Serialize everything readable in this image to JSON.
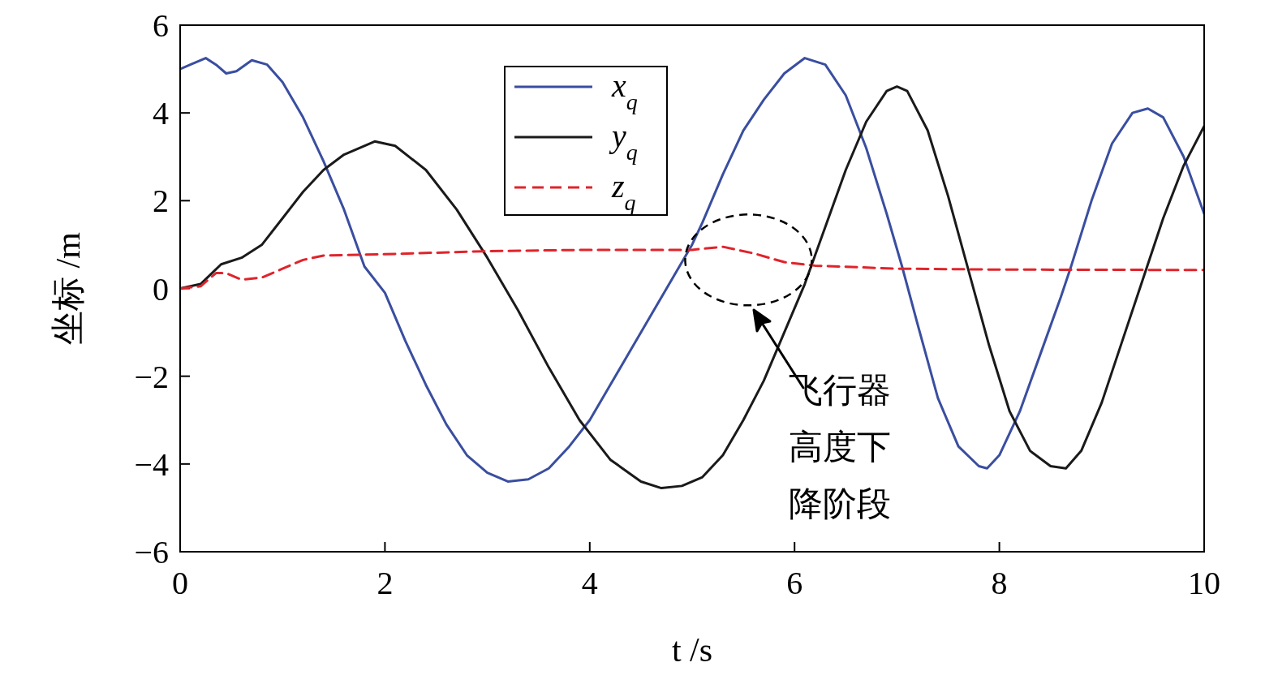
{
  "chart_data": {
    "type": "line",
    "xlabel": "t /s",
    "ylabel": "坐标 /m",
    "xlim": [
      0,
      10
    ],
    "ylim": [
      -6,
      6
    ],
    "xticks": [
      0,
      2,
      4,
      6,
      8,
      10
    ],
    "yticks": [
      {
        "value": -6,
        "label": "−6"
      },
      {
        "value": -4,
        "label": "−4"
      },
      {
        "value": -2,
        "label": "−2"
      },
      0,
      2,
      4,
      6
    ],
    "grid": false,
    "legend": "top",
    "annotations": [
      "飞行器",
      "高度下",
      "降阶段"
    ],
    "series": [
      {
        "name": "x$_{q}$",
        "color": "#3a4ea0",
        "line_style": "solid",
        "x": [
          0,
          0.1,
          0.25,
          0.35,
          0.45,
          0.55,
          0.7,
          0.85,
          1.0,
          1.2,
          1.4,
          1.6,
          1.8,
          2.0,
          2.2,
          2.4,
          2.6,
          2.8,
          3.0,
          3.2,
          3.4,
          3.6,
          3.8,
          4.0,
          4.2,
          4.4,
          4.6,
          4.8,
          5.0,
          5.1,
          5.3,
          5.5,
          5.7,
          5.9,
          6.1,
          6.3,
          6.5,
          6.7,
          6.9,
          7.05,
          7.2,
          7.4,
          7.6,
          7.8,
          7.88,
          8.0,
          8.2,
          8.4,
          8.6,
          8.7,
          8.9,
          9.1,
          9.3,
          9.45,
          9.6,
          9.8,
          10
        ],
        "values": [
          5.0,
          5.1,
          5.25,
          5.1,
          4.9,
          4.95,
          5.2,
          5.1,
          4.7,
          3.9,
          2.9,
          1.8,
          0.5,
          -0.1,
          -1.2,
          -2.2,
          -3.1,
          -3.8,
          -4.2,
          -4.4,
          -4.35,
          -4.1,
          -3.6,
          -3.0,
          -2.2,
          -1.4,
          -0.6,
          0.2,
          1.0,
          1.5,
          2.6,
          3.6,
          4.3,
          4.9,
          5.25,
          5.1,
          4.4,
          3.2,
          1.7,
          0.5,
          -0.8,
          -2.5,
          -3.6,
          -4.05,
          -4.1,
          -3.8,
          -2.8,
          -1.5,
          -0.2,
          0.5,
          2.0,
          3.3,
          4.0,
          4.1,
          3.9,
          3.0,
          1.7
        ]
      },
      {
        "name": "y$_{q}$",
        "color": "#1a1a1a",
        "line_style": "solid",
        "x": [
          0,
          0.2,
          0.4,
          0.6,
          0.8,
          1.0,
          1.2,
          1.4,
          1.6,
          1.9,
          2.1,
          2.4,
          2.7,
          3.0,
          3.3,
          3.6,
          3.9,
          4.2,
          4.5,
          4.7,
          4.9,
          5.1,
          5.3,
          5.5,
          5.7,
          5.9,
          6.1,
          6.3,
          6.5,
          6.7,
          6.9,
          7.0,
          7.1,
          7.3,
          7.5,
          7.7,
          7.9,
          8.1,
          8.3,
          8.5,
          8.65,
          8.8,
          9.0,
          9.2,
          9.4,
          9.6,
          9.8,
          10
        ],
        "values": [
          0,
          0.1,
          0.55,
          0.7,
          1.0,
          1.6,
          2.2,
          2.7,
          3.05,
          3.35,
          3.25,
          2.7,
          1.8,
          0.7,
          -0.5,
          -1.8,
          -3.0,
          -3.9,
          -4.4,
          -4.55,
          -4.5,
          -4.3,
          -3.8,
          -3.0,
          -2.1,
          -1.0,
          0.1,
          1.4,
          2.7,
          3.8,
          4.5,
          4.6,
          4.5,
          3.6,
          2.1,
          0.4,
          -1.3,
          -2.8,
          -3.7,
          -4.05,
          -4.1,
          -3.7,
          -2.6,
          -1.2,
          0.2,
          1.6,
          2.8,
          3.7
        ]
      },
      {
        "name": "z$_{q}$",
        "color": "#e0242b",
        "line_style": "dashed",
        "x": [
          0,
          0.2,
          0.35,
          0.45,
          0.6,
          0.8,
          1.0,
          1.2,
          1.4,
          2,
          3,
          4,
          5,
          5.3,
          5.6,
          5.9,
          6.2,
          7,
          8,
          10
        ],
        "values": [
          0,
          0.05,
          0.35,
          0.35,
          0.2,
          0.25,
          0.45,
          0.65,
          0.75,
          0.78,
          0.85,
          0.88,
          0.88,
          0.95,
          0.8,
          0.6,
          0.52,
          0.45,
          0.43,
          0.42
        ]
      }
    ]
  }
}
